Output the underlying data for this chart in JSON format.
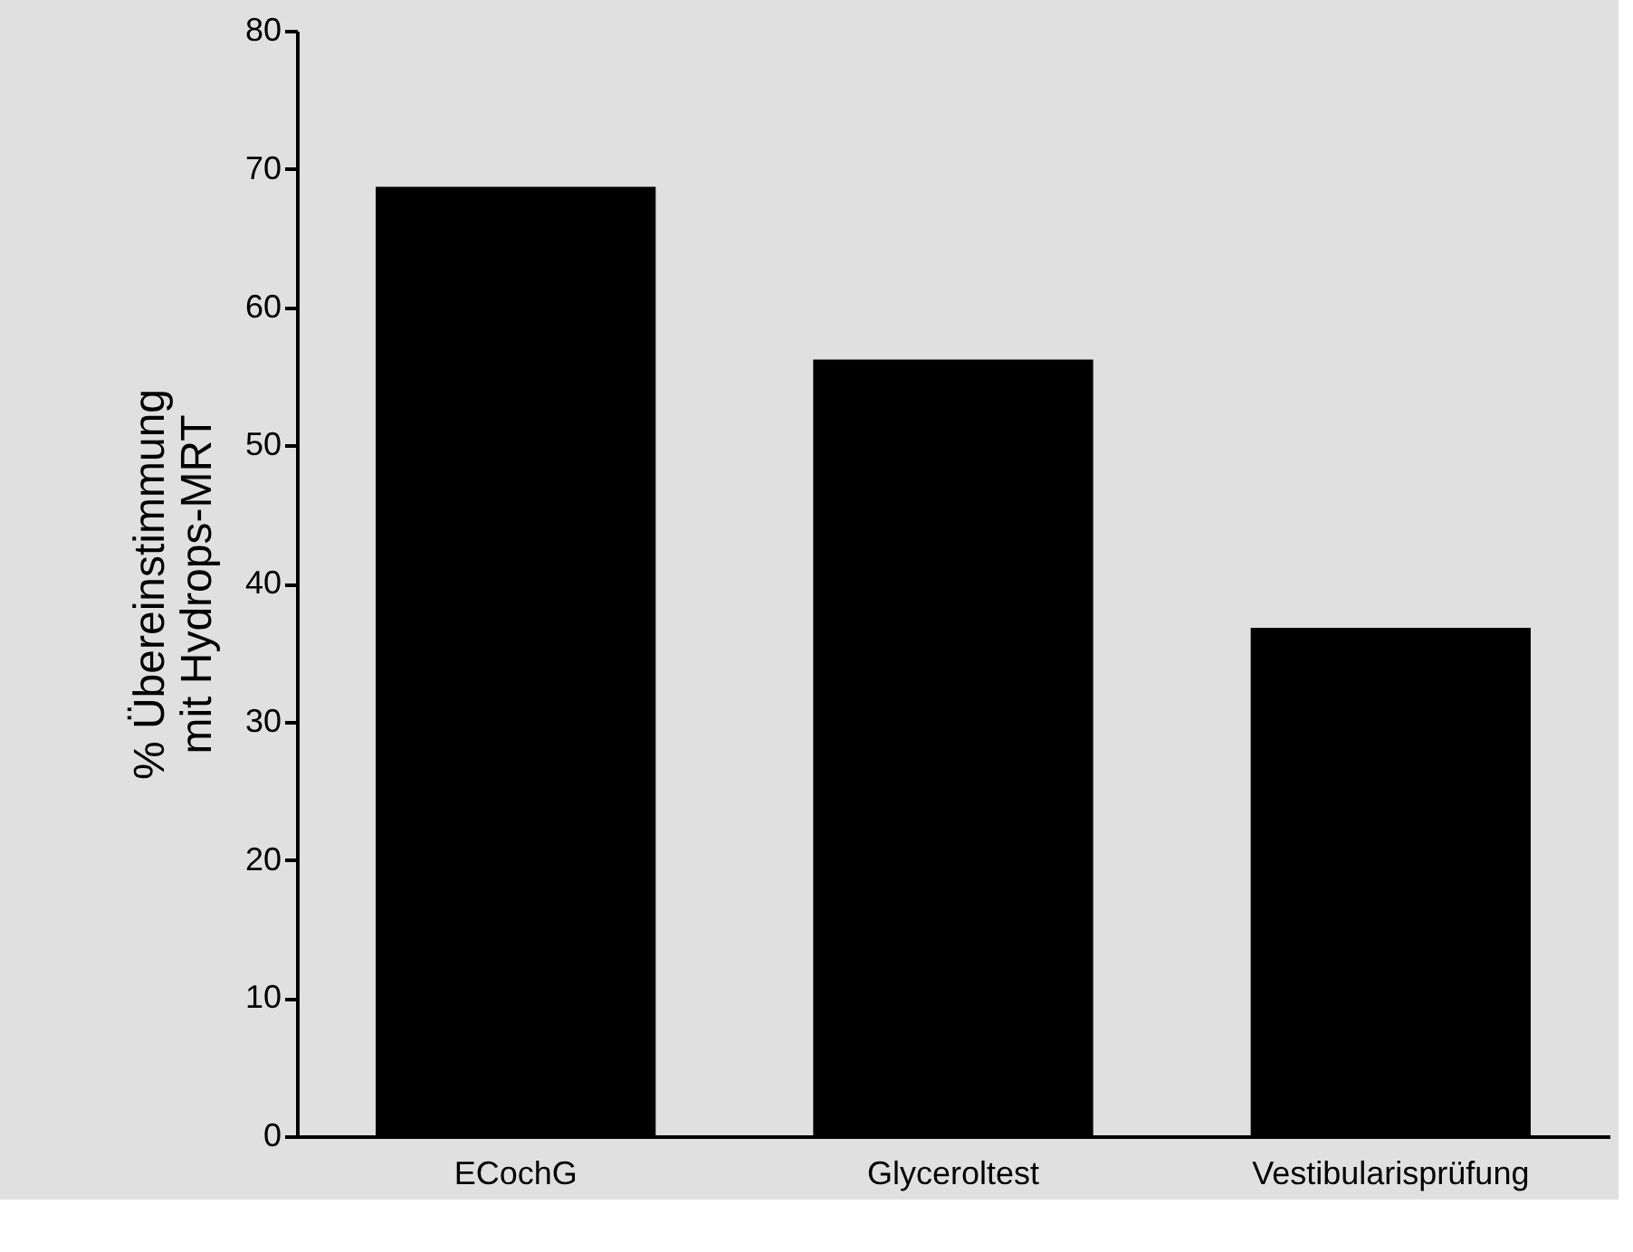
{
  "chart_data": {
    "type": "bar",
    "ylabel": "% Übereinstimmung\nmit Hydrops-MRT",
    "categories": [
      "ECochG",
      "Glyceroltest",
      "Vestibularisprüfung"
    ],
    "values": [
      68.7,
      56.2,
      36.8
    ],
    "color": "#000000",
    "ylim": [
      0,
      80
    ],
    "yticks": [
      0,
      10,
      20,
      30,
      40,
      50,
      60,
      70,
      80
    ]
  }
}
